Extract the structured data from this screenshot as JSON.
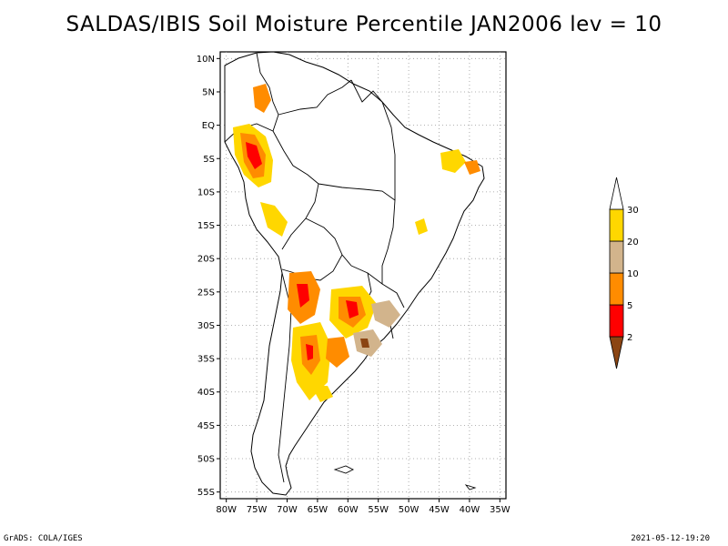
{
  "title": "SALDAS/IBIS Soil Moisture Percentile JAN2006 lev = 10",
  "footer": {
    "left": "GrADS: COLA/IGES",
    "right": "2021-05-12-19:20"
  },
  "map": {
    "lat_labels": [
      "10N",
      "5N",
      "EQ",
      "5S",
      "10S",
      "15S",
      "20S",
      "25S",
      "30S",
      "35S",
      "40S",
      "45S",
      "50S",
      "55S"
    ],
    "lon_labels": [
      "80W",
      "75W",
      "70W",
      "65W",
      "60W",
      "55W",
      "50W",
      "45W",
      "40W",
      "35W"
    ],
    "lat_range": [
      -56,
      11
    ],
    "lon_range": [
      -81,
      -34
    ],
    "grid": "dotted",
    "land_color": "#ffffff",
    "border_color": "#000000"
  },
  "colorbar": {
    "orientation": "vertical",
    "placement": "right",
    "levels": [
      "2",
      "5",
      "10",
      "20",
      "30"
    ],
    "colors": [
      "#8b4513",
      "#ff0000",
      "#ff8c00",
      "#d2b48c",
      "#ffd700",
      "#ffffff"
    ]
  },
  "colors": {
    "lowest": "#8b4513",
    "very_low": "#ff0000",
    "low": "#ff8c00",
    "moderate": "#d2b48c",
    "near_normal": "#ffd700"
  }
}
